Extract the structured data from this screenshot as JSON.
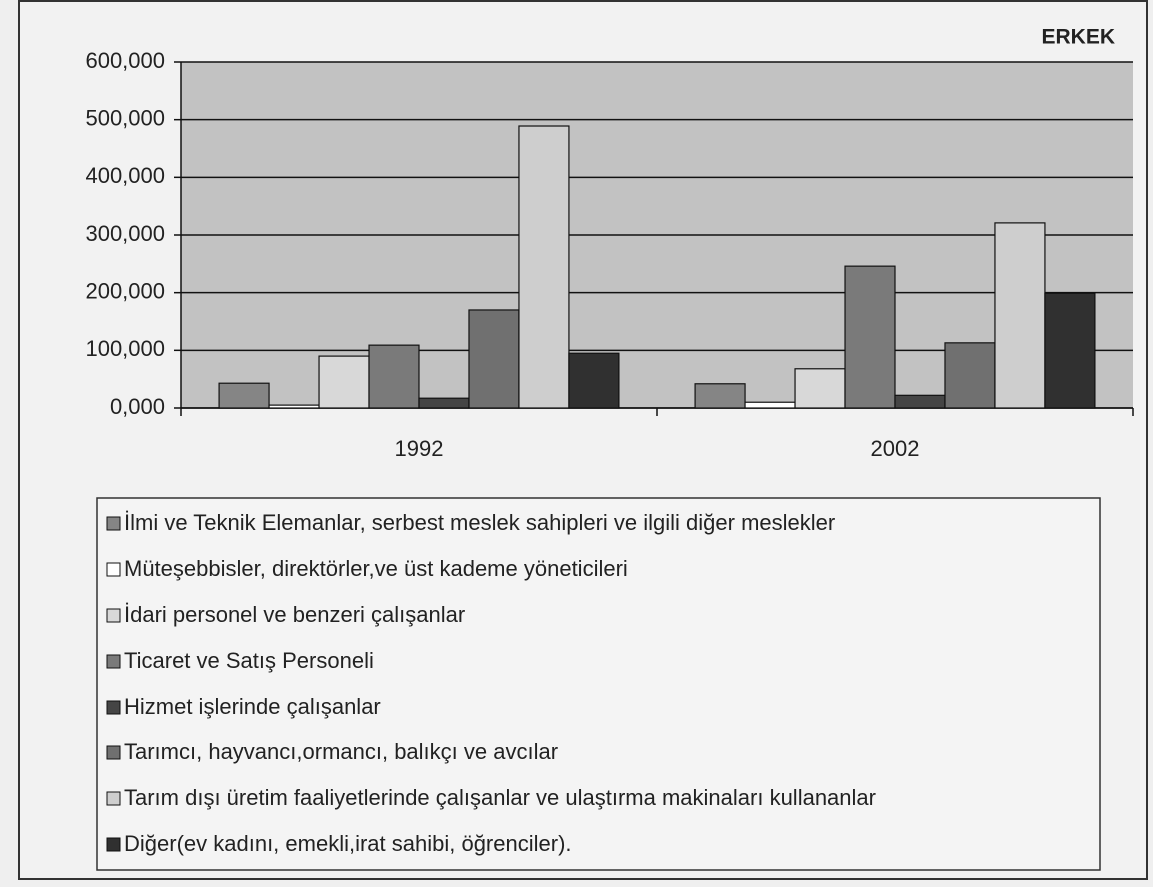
{
  "chart_data": {
    "type": "bar",
    "title": "ERKEK",
    "categories": [
      "1992",
      "2002"
    ],
    "series": [
      {
        "name": "İlmi ve Teknik Elemanlar, serbest meslek sahipleri ve ilgili diğer meslekler",
        "color": "#858585",
        "values": [
          43000,
          42000
        ]
      },
      {
        "name": "Müteşebbisler, direktörler,ve üst kademe yöneticileri",
        "color": "#ffffff",
        "values": [
          5000,
          10000
        ]
      },
      {
        "name": "İdari personel ve benzeri çalışanlar",
        "color": "#d8d8d8",
        "values": [
          90000,
          68000
        ]
      },
      {
        "name": "Ticaret ve Satış Personeli",
        "color": "#7a7a7a",
        "values": [
          109000,
          246000
        ]
      },
      {
        "name": "Hizmet işlerinde çalışanlar",
        "color": "#454545",
        "values": [
          17000,
          22000
        ]
      },
      {
        "name": "Tarımcı, hayvancı,ormancı, balıkçı ve avcılar",
        "color": "#707070",
        "values": [
          170000,
          113000
        ]
      },
      {
        "name": "Tarım dışı üretim faaliyetlerinde çalışanlar ve ulaştırma makinaları kullananlar",
        "color": "#cecece",
        "values": [
          489000,
          321000
        ]
      },
      {
        "name": "Diğer(ev kadını, emekli,irat sahibi, öğrenciler).",
        "color": "#303030",
        "values": [
          95000,
          199000
        ]
      }
    ],
    "ylim": [
      0,
      600000
    ],
    "yticks": [
      {
        "value": 0,
        "label": "0,000"
      },
      {
        "value": 100000,
        "label": "100,000"
      },
      {
        "value": 200000,
        "label": "200,000"
      },
      {
        "value": 300000,
        "label": "300,000"
      },
      {
        "value": 400000,
        "label": "400,000"
      },
      {
        "value": 500000,
        "label": "500,000"
      },
      {
        "value": 600000,
        "label": "600,000"
      }
    ],
    "grid": true
  }
}
